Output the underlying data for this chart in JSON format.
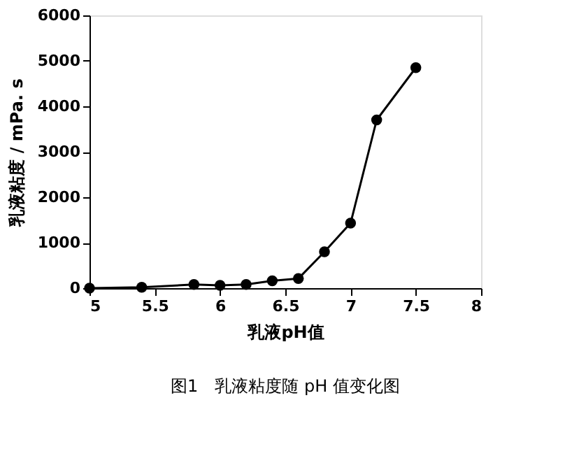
{
  "chart_data": {
    "type": "line",
    "xlabel": "乳液pH值",
    "ylabel": "乳液粘度 / mPa. s",
    "annotations": [
      "图1　乳液粘度随 pH 值变化图"
    ],
    "x": [
      5,
      5.4,
      5.8,
      6.0,
      6.2,
      6.4,
      6.6,
      6.8,
      7.0,
      7.2,
      7.5
    ],
    "series": [
      {
        "color": "#000000",
        "values": [
          0,
          20,
          80,
          60,
          80,
          160,
          210,
          800,
          1430,
          3700,
          4850
        ]
      }
    ],
    "xlim": [
      5,
      8
    ],
    "xticks": [
      5,
      5.5,
      6,
      6.5,
      7,
      7.5,
      8
    ],
    "ylim": [
      0,
      6000
    ],
    "yticks": [
      0,
      1000,
      2000,
      3000,
      4000,
      5000,
      6000
    ],
    "grid": false,
    "marker": "circle",
    "line_style": "solid"
  }
}
